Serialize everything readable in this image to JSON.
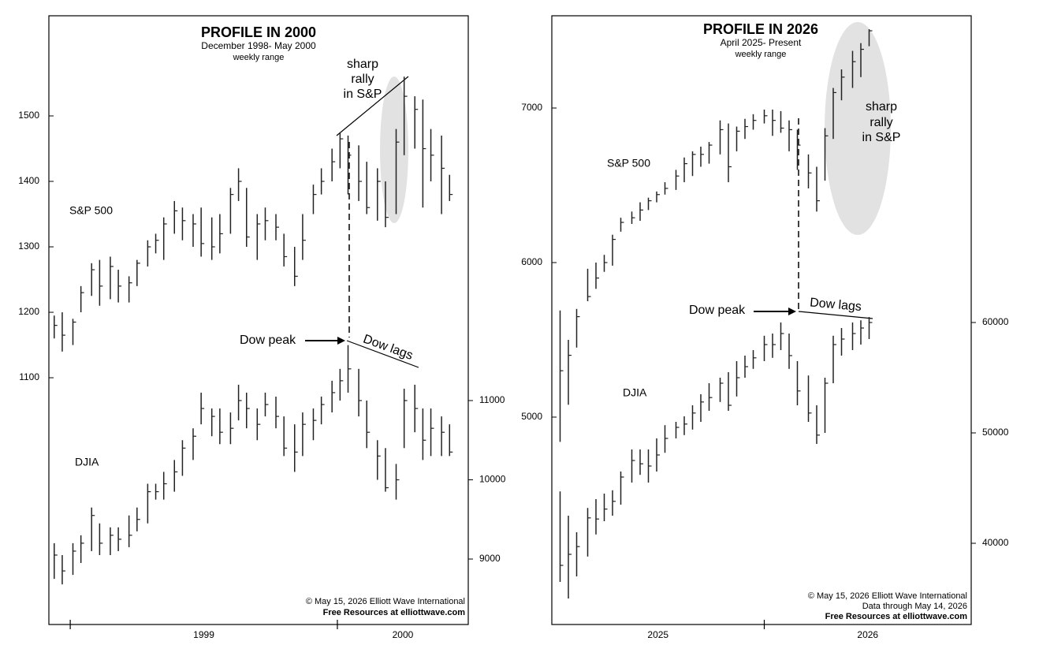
{
  "chart_data": [
    {
      "type": "ohlc",
      "title": "PROFILE IN 2000",
      "subtitle": "December 1998- May 2000",
      "note": "weekly range",
      "rally_text": [
        "sharp",
        "rally",
        "in S&P"
      ],
      "peak_text": "Dow peak",
      "lag_text": "Dow lags",
      "credits": [
        "© May 15, 2026  Elliott Wave International",
        "Free Resources at elliottwave.com"
      ],
      "xlim": [
        1998.92,
        2000.49
      ],
      "xticks": [
        1999,
        2000
      ],
      "xlabels": [
        {
          "value": 1999,
          "label": "1999"
        },
        {
          "value": 2000,
          "label": "2000"
        }
      ],
      "x": [
        1998.94,
        1998.97,
        1999.01,
        1999.04,
        1999.08,
        1999.11,
        1999.15,
        1999.18,
        1999.22,
        1999.25,
        1999.29,
        1999.32,
        1999.35,
        1999.39,
        1999.42,
        1999.46,
        1999.49,
        1999.53,
        1999.56,
        1999.6,
        1999.63,
        1999.66,
        1999.7,
        1999.73,
        1999.77,
        1999.8,
        1999.84,
        1999.87,
        1999.91,
        1999.94,
        1999.98,
        2000.01,
        2000.04,
        2000.08,
        2000.11,
        2000.15,
        2000.18,
        2000.22,
        2000.25,
        2000.29,
        2000.32,
        2000.35,
        2000.39,
        2000.42
      ],
      "ylim": [
        723,
        1653
      ],
      "yticks": [
        1100,
        1200,
        1300,
        1400,
        1500
      ],
      "y2lim": [
        8174,
        15856
      ],
      "y2ticks": [
        9000,
        10000,
        11000
      ],
      "series": [
        {
          "name": "S&P 500",
          "color": "#222222",
          "high": [
            1195,
            1200,
            1190,
            1240,
            1275,
            1280,
            1285,
            1265,
            1255,
            1280,
            1310,
            1320,
            1345,
            1370,
            1360,
            1350,
            1360,
            1345,
            1350,
            1390,
            1420,
            1390,
            1350,
            1360,
            1350,
            1320,
            1300,
            1350,
            1395,
            1420,
            1450,
            1475,
            1470,
            1455,
            1430,
            1420,
            1400,
            1480,
            1560,
            1530,
            1525,
            1480,
            1470,
            1410
          ],
          "low": [
            1160,
            1140,
            1150,
            1200,
            1225,
            1210,
            1220,
            1215,
            1215,
            1240,
            1270,
            1290,
            1280,
            1320,
            1310,
            1300,
            1285,
            1280,
            1290,
            1320,
            1370,
            1300,
            1280,
            1310,
            1310,
            1270,
            1240,
            1280,
            1350,
            1380,
            1400,
            1420,
            1380,
            1370,
            1350,
            1340,
            1330,
            1350,
            1440,
            1450,
            1360,
            1400,
            1350,
            1370
          ],
          "close": [
            1180,
            1165,
            1185,
            1230,
            1265,
            1240,
            1270,
            1240,
            1245,
            1275,
            1300,
            1310,
            1335,
            1355,
            1340,
            1335,
            1305,
            1300,
            1320,
            1380,
            1400,
            1315,
            1335,
            1340,
            1330,
            1285,
            1255,
            1310,
            1380,
            1400,
            1430,
            1465,
            1440,
            1400,
            1360,
            1400,
            1345,
            1460,
            1530,
            1510,
            1450,
            1440,
            1420,
            1380
          ]
        },
        {
          "name": "DJIA",
          "color": "#222222",
          "axis": "y2",
          "high": [
            9200,
            9050,
            9200,
            9300,
            9650,
            9450,
            9400,
            9400,
            9550,
            9650,
            9950,
            9950,
            10100,
            10250,
            10500,
            10650,
            11100,
            10900,
            10900,
            10850,
            11200,
            11100,
            10900,
            11100,
            11050,
            10800,
            10700,
            10850,
            10900,
            11050,
            11250,
            11400,
            11700,
            11400,
            11000,
            10500,
            10400,
            10200,
            11150,
            11200,
            10900,
            10900,
            10800,
            10700
          ],
          "low": [
            8750,
            8680,
            8800,
            8950,
            9100,
            9050,
            9050,
            9100,
            9150,
            9350,
            9450,
            9750,
            9750,
            9850,
            10050,
            10250,
            10700,
            10550,
            10450,
            10450,
            10750,
            10650,
            10500,
            10800,
            10650,
            10300,
            10100,
            10300,
            10500,
            10700,
            10850,
            11000,
            11100,
            10800,
            10400,
            10000,
            9850,
            9750,
            10400,
            10600,
            10250,
            10300,
            10300,
            10300
          ],
          "close": [
            9050,
            8850,
            9100,
            9200,
            9550,
            9200,
            9300,
            9250,
            9300,
            9500,
            9850,
            9850,
            9950,
            10100,
            10400,
            10550,
            10900,
            10800,
            10600,
            10650,
            11000,
            10900,
            10700,
            10950,
            10800,
            10400,
            10350,
            10700,
            10750,
            10950,
            11100,
            11250,
            11400,
            11000,
            10600,
            10300,
            9900,
            10000,
            11000,
            10900,
            10500,
            10650,
            10600,
            10350
          ]
        }
      ]
    },
    {
      "type": "ohlc",
      "title": "PROFILE IN 2026",
      "subtitle": "April 2025- Present",
      "note": "weekly range",
      "rally_text": [
        "sharp",
        "rally",
        "in S&P"
      ],
      "peak_text": "Dow peak",
      "lag_text": "Dow lags",
      "credits": [
        "© May 15, 2026  Elliott Wave International",
        "Data through May 14, 2026",
        "Free Resources at elliottwave.com"
      ],
      "xlim": [
        2025.23,
        2026.75
      ],
      "xticks": [
        2026
      ],
      "xlabels": [
        {
          "value": 2025,
          "label": "2025"
        },
        {
          "value": 2026,
          "label": "2026"
        }
      ],
      "x": [
        2025.26,
        2025.29,
        2025.32,
        2025.36,
        2025.39,
        2025.42,
        2025.45,
        2025.48,
        2025.52,
        2025.55,
        2025.58,
        2025.61,
        2025.64,
        2025.68,
        2025.71,
        2025.74,
        2025.77,
        2025.8,
        2025.84,
        2025.87,
        2025.9,
        2025.93,
        2025.96,
        2026.0,
        2026.03,
        2026.06,
        2026.09,
        2026.12,
        2026.16,
        2026.19,
        2026.22,
        2026.25,
        2026.28,
        2026.32,
        2026.35,
        2026.38
      ],
      "ylim": [
        3658,
        7597
      ],
      "yticks": [
        5000,
        6000,
        7000
      ],
      "y2lim": [
        32643,
        87786
      ],
      "y2ticks": [
        40000,
        50000,
        60000
      ],
      "series": [
        {
          "name": "S&P 500",
          "color": "#222222",
          "high": [
            5690,
            5500,
            5700,
            5960,
            6000,
            6050,
            6180,
            6290,
            6330,
            6390,
            6420,
            6460,
            6520,
            6600,
            6680,
            6720,
            6750,
            6780,
            6920,
            6900,
            6880,
            6930,
            6960,
            6990,
            6990,
            6980,
            6920,
            6860,
            6700,
            6620,
            6870,
            7130,
            7250,
            7370,
            7420,
            7510
          ],
          "low": [
            4840,
            5080,
            5450,
            5750,
            5830,
            5940,
            5980,
            6200,
            6250,
            6270,
            6340,
            6390,
            6440,
            6470,
            6520,
            6560,
            6620,
            6640,
            6700,
            6520,
            6720,
            6800,
            6860,
            6900,
            6820,
            6840,
            6720,
            6600,
            6480,
            6330,
            6530,
            6800,
            7050,
            7130,
            7200,
            7400
          ],
          "close": [
            5300,
            5400,
            5650,
            5780,
            5900,
            6000,
            6150,
            6260,
            6290,
            6340,
            6400,
            6440,
            6480,
            6560,
            6640,
            6700,
            6700,
            6760,
            6860,
            6620,
            6850,
            6880,
            6920,
            6950,
            6920,
            6870,
            6860,
            6760,
            6580,
            6400,
            6820,
            7100,
            7200,
            7300,
            7380,
            7500
          ]
        },
        {
          "name": "DJIA",
          "color": "#222222",
          "axis": "y2",
          "high": [
            44700,
            42500,
            41000,
            43200,
            44000,
            44500,
            44800,
            46500,
            48500,
            48500,
            48500,
            49500,
            50700,
            51000,
            51500,
            52500,
            53500,
            54500,
            55000,
            55500,
            56500,
            57000,
            57500,
            58800,
            59000,
            60000,
            59000,
            56500,
            55200,
            52500,
            55000,
            58800,
            59500,
            60000,
            60200,
            60500
          ],
          "low": [
            36500,
            35000,
            37000,
            38800,
            40800,
            42000,
            42500,
            43500,
            45500,
            46200,
            45500,
            46500,
            48200,
            49500,
            49800,
            50300,
            51000,
            52000,
            52800,
            52000,
            53300,
            55000,
            55800,
            56500,
            56800,
            57500,
            55800,
            52500,
            51000,
            49000,
            50000,
            54500,
            57000,
            57500,
            58000,
            58500
          ],
          "close": [
            38000,
            39000,
            39700,
            42300,
            42200,
            43100,
            43800,
            46000,
            47500,
            47200,
            47000,
            48000,
            49500,
            50500,
            50800,
            51800,
            52800,
            53200,
            54500,
            52500,
            55000,
            56000,
            56800,
            58000,
            58000,
            59000,
            57000,
            53800,
            51800,
            49800,
            54500,
            58000,
            58500,
            59000,
            59500,
            60000
          ]
        }
      ]
    }
  ]
}
